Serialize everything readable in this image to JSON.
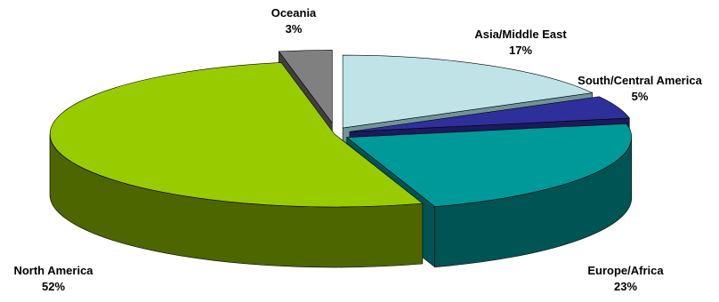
{
  "chart_data": {
    "type": "pie",
    "style": "3d-exploded",
    "slices": [
      {
        "label": "Asia/Middle East",
        "value": 17,
        "value_label": "17%",
        "color": "#bfe3e6",
        "side_color": "#6f9598"
      },
      {
        "label": "South/Central America",
        "value": 5,
        "value_label": "5%",
        "color": "#2f2f9c",
        "side_color": "#1a1a5c"
      },
      {
        "label": "Europe/Africa",
        "value": 23,
        "value_label": "23%",
        "color": "#009999",
        "side_color": "#005454"
      },
      {
        "label": "North America",
        "value": 52,
        "value_label": "52%",
        "color": "#99cc00",
        "side_color": "#4d6600"
      },
      {
        "label": "Oceania",
        "value": 3,
        "value_label": "3%",
        "color": "#808080",
        "side_color": "#404040"
      }
    ]
  }
}
